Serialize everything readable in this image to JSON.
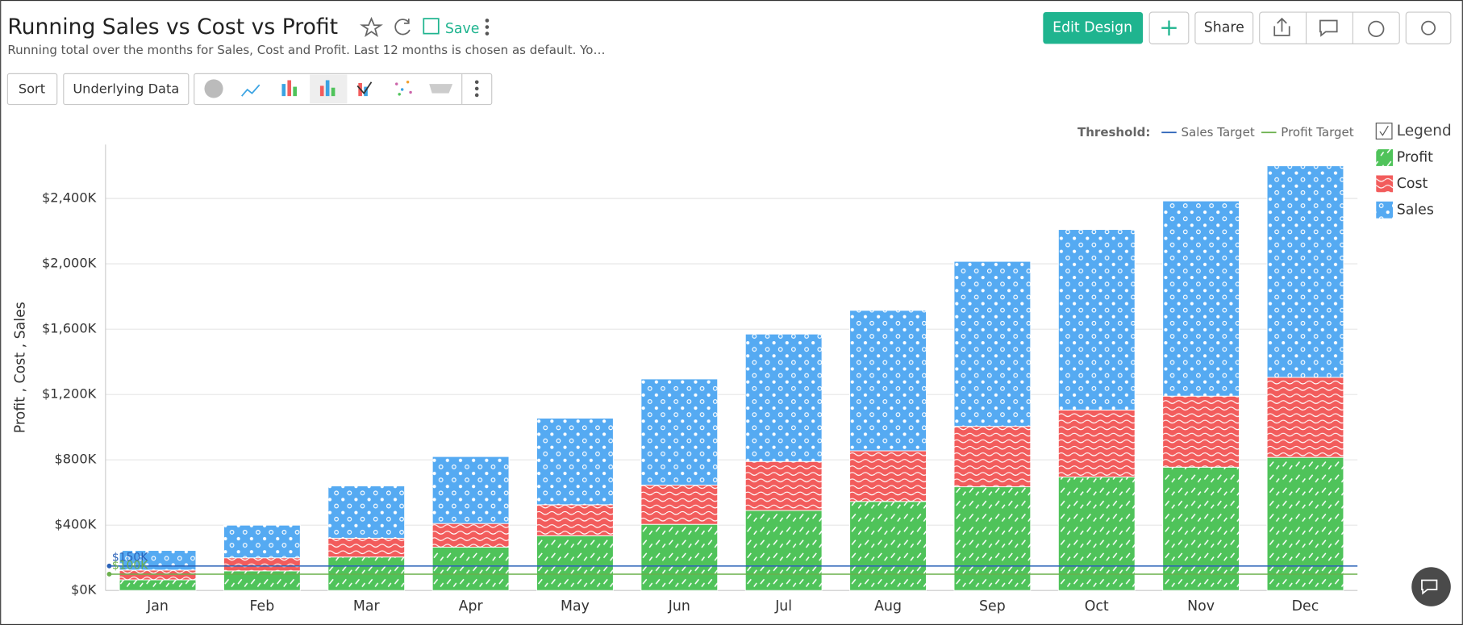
{
  "header": {
    "title": "Running Sales vs Cost vs Profit",
    "subtitle": "Running total over the months for Sales, Cost and Profit. Last 12 months is chosen as default. Yo…",
    "save": "Save"
  },
  "toolbar": {
    "sort": "Sort",
    "underlying_data": "Underlying Data"
  },
  "actions": {
    "edit_design": "Edit Design",
    "share": "Share"
  },
  "chart_data": {
    "type": "stacked-bar",
    "y_label": "Profit , Cost , Sales",
    "categories": [
      "Jan",
      "Feb",
      "Mar",
      "Apr",
      "May",
      "Jun",
      "Jul",
      "Aug",
      "Sep",
      "Oct",
      "Nov",
      "Dec"
    ],
    "series": [
      {
        "name": "Profit",
        "color": "#4fc35a",
        "values": [
          65000,
          120000,
          205000,
          265000,
          335000,
          405000,
          490000,
          545000,
          635000,
          695000,
          755000,
          815000
        ]
      },
      {
        "name": "Cost",
        "color": "#f25c5c",
        "values": [
          60000,
          80000,
          115000,
          145000,
          190000,
          240000,
          300000,
          310000,
          370000,
          410000,
          435000,
          490000
        ]
      },
      {
        "name": "Sales",
        "color": "#55aaf2",
        "values": [
          120000,
          200000,
          320000,
          410000,
          530000,
          650000,
          780000,
          860000,
          1010000,
          1105000,
          1195000,
          1295000
        ]
      }
    ],
    "ylim": [
      0,
      2730000
    ],
    "yticks": [
      {
        "value": 0,
        "label": "$0K"
      },
      {
        "value": 400000,
        "label": "$400K"
      },
      {
        "value": 800000,
        "label": "$800K"
      },
      {
        "value": 1200000,
        "label": "$1,200K"
      },
      {
        "value": 1600000,
        "label": "$1,600K"
      },
      {
        "value": 2000000,
        "label": "$2,000K"
      },
      {
        "value": 2400000,
        "label": "$2,400K"
      }
    ],
    "grid": true,
    "legend_title": "Legend",
    "threshold_title": "Threshold:",
    "thresholds": [
      {
        "name": "Sales Target",
        "value": 150000,
        "value_label": "$150K",
        "color": "#2a62b8"
      },
      {
        "name": "Profit Target",
        "value": 100000,
        "value_label": "$100K",
        "color": "#6ab04c"
      }
    ]
  }
}
